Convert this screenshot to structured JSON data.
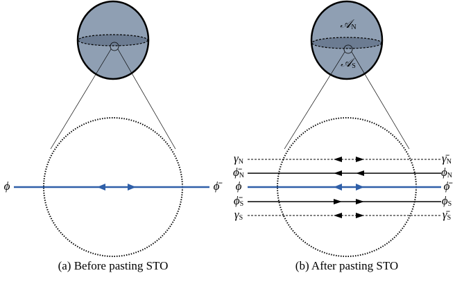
{
  "panel_a": {
    "caption": "(a) Before pasting STO",
    "left_label": "ϕ",
    "right_label": "ϕ̄"
  },
  "panel_b": {
    "caption": "(b) After pasting STO",
    "north_label": {
      "base": "𝒜",
      "sub": "N"
    },
    "south_label": {
      "base": "𝒜",
      "sub": "S"
    },
    "rows": [
      {
        "left": {
          "base": "γ",
          "sub": "N"
        },
        "right": {
          "base": "γ̄",
          "sub": "N"
        }
      },
      {
        "left": {
          "base": "ϕ̄",
          "sub": "N"
        },
        "right": {
          "base": "ϕ",
          "sub": "N"
        }
      },
      {
        "left": {
          "base": "ϕ"
        },
        "right": {
          "base": "ϕ̄"
        }
      },
      {
        "left": {
          "base": "ϕ̄",
          "sub": "S"
        },
        "right": {
          "base": "ϕ",
          "sub": "S"
        }
      },
      {
        "left": {
          "base": "γ",
          "sub": "S"
        },
        "right": {
          "base": "γ̄",
          "sub": "S"
        }
      }
    ]
  }
}
